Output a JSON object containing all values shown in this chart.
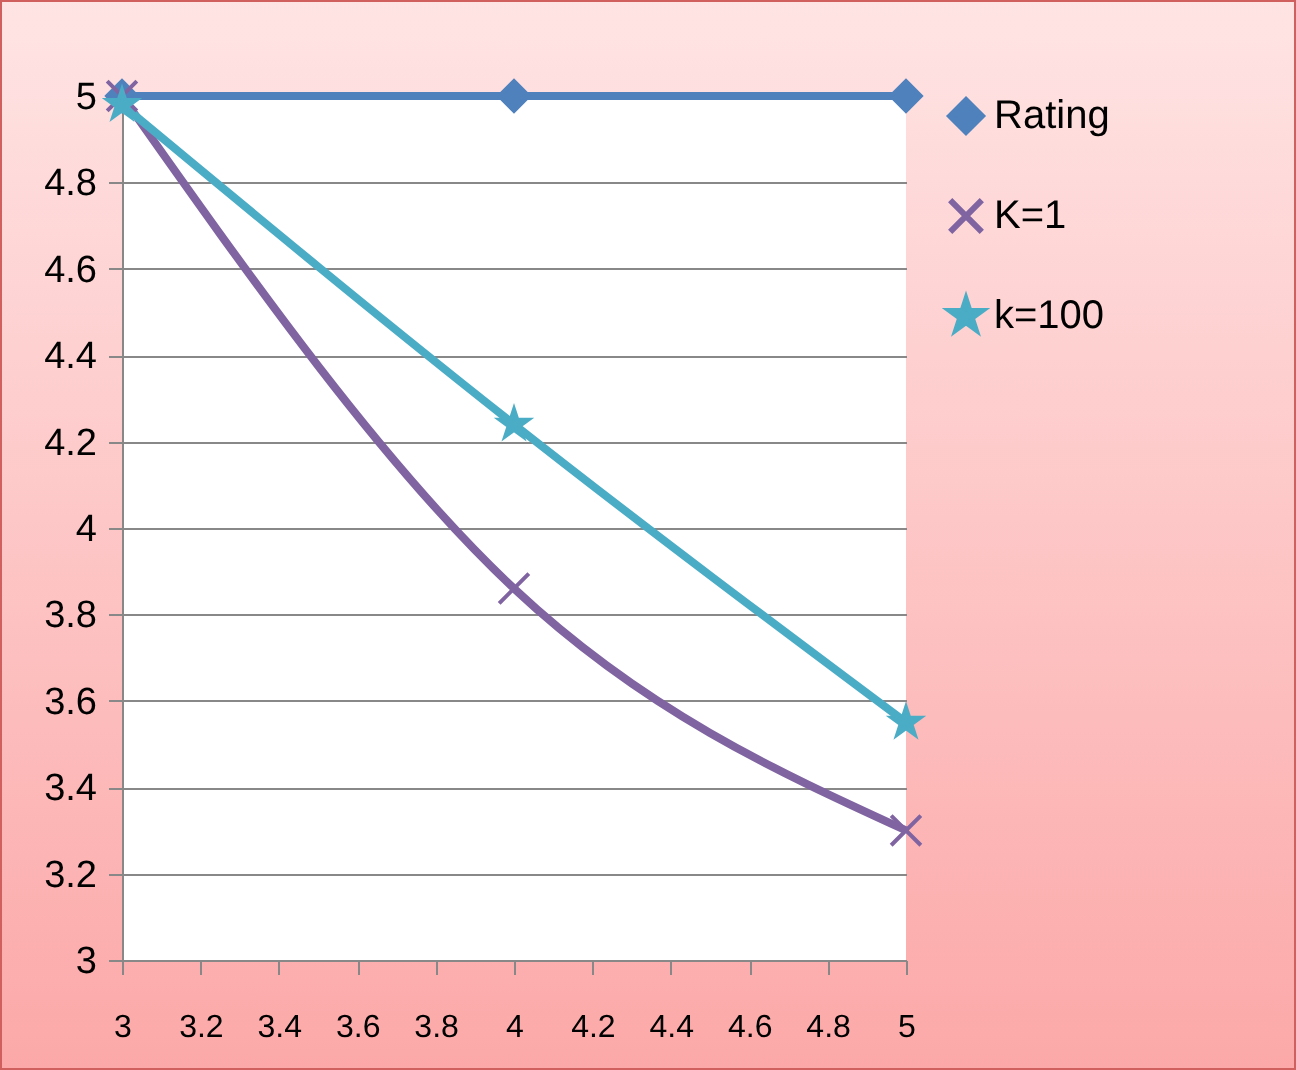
{
  "chart_data": {
    "type": "line",
    "xlim": [
      3,
      5
    ],
    "xticks": [
      3,
      3.2,
      3.4,
      3.6,
      3.8,
      4,
      4.2,
      4.4,
      4.6,
      4.8,
      5
    ],
    "ylim": [
      3,
      5
    ],
    "yticks": [
      3,
      3.2,
      3.4,
      3.6,
      3.8,
      4,
      4.2,
      4.4,
      4.6,
      4.8,
      5
    ],
    "grid": "y",
    "legend": "right",
    "series": [
      {
        "name": "Rating",
        "color": "#4f81bd",
        "marker": "diamond",
        "x": [
          3,
          4,
          5
        ],
        "values": [
          5,
          5,
          5
        ]
      },
      {
        "name": "K=1",
        "color": "#8064a2",
        "marker": "cross",
        "x": [
          3,
          4,
          5
        ],
        "values": [
          5,
          3.86,
          3.3
        ]
      },
      {
        "name": "k=100",
        "color": "#4bacc6",
        "marker": "star",
        "x": [
          3,
          4,
          5
        ],
        "values": [
          4.98,
          4.24,
          3.55
        ]
      }
    ]
  }
}
